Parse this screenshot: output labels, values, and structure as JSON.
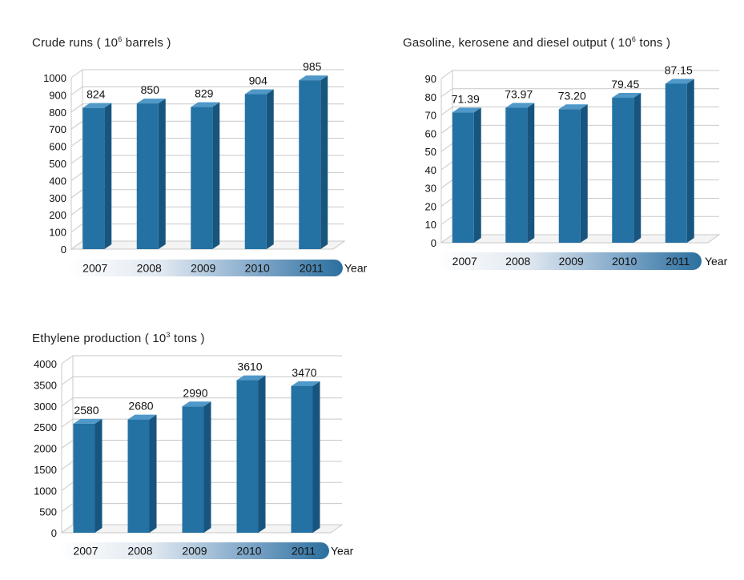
{
  "chart_data": [
    {
      "type": "bar",
      "title_prefix": "Crude runs ( 10",
      "title_exp": "6",
      "title_suffix": " barrels )",
      "categories": [
        "2007",
        "2008",
        "2009",
        "2010",
        "2011"
      ],
      "values": [
        824,
        850,
        829,
        904,
        985
      ],
      "value_labels": [
        "824",
        "850",
        "829",
        "904",
        "985"
      ],
      "xlabel": "Year",
      "ylabel": "",
      "ylim": [
        0,
        1000
      ],
      "yticks": [
        0,
        100,
        200,
        300,
        400,
        500,
        600,
        700,
        800,
        900,
        1000
      ],
      "grid": true
    },
    {
      "type": "bar",
      "title_prefix": "Gasoline, kerosene and diesel output  ( 10",
      "title_exp": "6",
      "title_suffix": " tons )",
      "categories": [
        "2007",
        "2008",
        "2009",
        "2010",
        "2011"
      ],
      "values": [
        71.39,
        73.97,
        73.2,
        79.45,
        87.15
      ],
      "value_labels": [
        "71.39",
        "73.97",
        "73.20",
        "79.45",
        "87.15"
      ],
      "xlabel": "Year",
      "ylabel": "",
      "ylim": [
        0,
        90
      ],
      "yticks": [
        0,
        10,
        20,
        30,
        40,
        50,
        60,
        70,
        80,
        90
      ],
      "grid": true
    },
    {
      "type": "bar",
      "title_prefix": "Ethylene production ( 10",
      "title_exp": "3",
      "title_suffix": " tons )",
      "categories": [
        "2007",
        "2008",
        "2009",
        "2010",
        "2011"
      ],
      "values": [
        2580,
        2680,
        2990,
        3610,
        3470
      ],
      "value_labels": [
        "2580",
        "2680",
        "2990",
        "3610",
        "3470"
      ],
      "xlabel": "Year",
      "ylabel": "",
      "ylim": [
        0,
        4000
      ],
      "yticks": [
        0,
        500,
        1000,
        1500,
        2000,
        2500,
        3000,
        3500,
        4000
      ],
      "grid": true
    }
  ],
  "colors": {
    "bar_front": "#2472a4",
    "bar_side": "#18557e",
    "bar_top": "#4f98c8",
    "grid": "#c8c8c8",
    "band_dark": "#2b6f9e"
  }
}
